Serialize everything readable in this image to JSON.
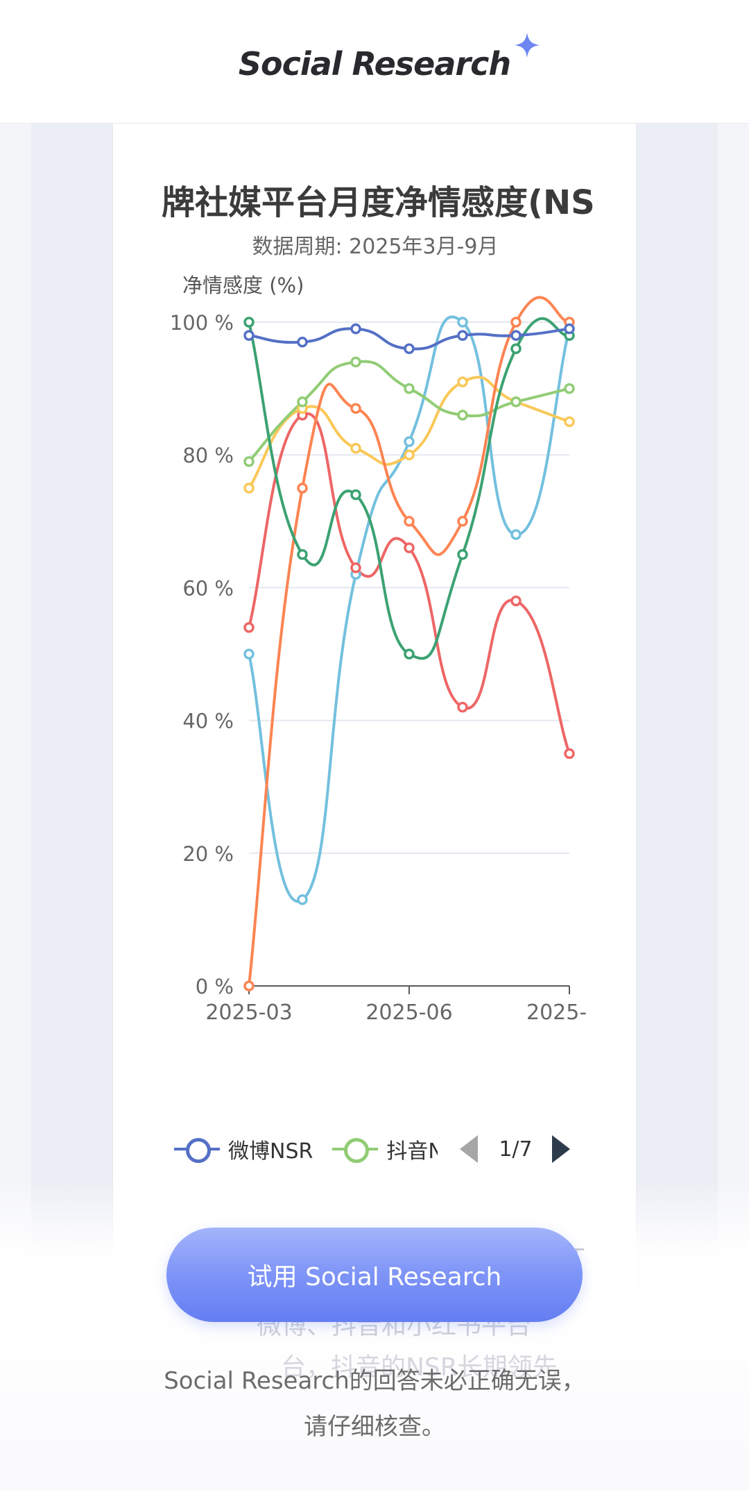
{
  "header": {
    "brand": "Social Research"
  },
  "chart": {
    "title": "牌社媒平台月度净情感度(NS",
    "subtitle": "数据周期: 2025年3月-9月",
    "y_axis_title": "净情感度 (%)",
    "y_ticks": [
      "100 %",
      "80 %",
      "60 %",
      "40 %",
      "20 %",
      "0 %"
    ],
    "x_ticks": [
      "2025-03",
      "2025-06",
      "2025-"
    ]
  },
  "chart_data": {
    "type": "line",
    "title": "牌社媒平台月度净情感度(NS",
    "subtitle": "数据周期: 2025年3月-9月",
    "ylabel": "净情感度 (%)",
    "ylim": [
      0,
      100
    ],
    "x": [
      "2025-03",
      "2025-04",
      "2025-05",
      "2025-06",
      "2025-07",
      "2025-08",
      "2025-09"
    ],
    "series": [
      {
        "name": "微博NSR",
        "color": "#5470c6",
        "values": [
          98,
          97,
          99,
          96,
          98,
          98,
          99
        ]
      },
      {
        "name": "抖音N",
        "color": "#91cc75",
        "values": [
          79,
          88,
          94,
          90,
          86,
          88,
          90
        ]
      },
      {
        "color": "#fac858",
        "values": [
          75,
          87,
          81,
          80,
          91,
          88,
          85
        ]
      },
      {
        "color": "#ee6666",
        "values": [
          54,
          86,
          63,
          66,
          42,
          58,
          35
        ]
      },
      {
        "color": "#73c0de",
        "values": [
          50,
          13,
          62,
          82,
          100,
          68,
          99
        ]
      },
      {
        "color": "#3ba272",
        "values": [
          100,
          65,
          74,
          50,
          65,
          96,
          98
        ]
      },
      {
        "color": "#fc8452",
        "values": [
          0,
          75,
          87,
          70,
          70,
          100,
          100
        ]
      }
    ],
    "grid": true,
    "legend_position": "bottom"
  },
  "legend": {
    "items": [
      {
        "label": "微博NSR",
        "color": "#5470c6"
      },
      {
        "label": "抖音N",
        "color": "#91cc75"
      }
    ],
    "pager": "1/7"
  },
  "ghost": {
    "line1": "微博、抖音和小红书平台",
    "line2": "台，抖音的NSR长期领先",
    "line3": "T"
  },
  "cta": {
    "label": "试用 Social Research"
  },
  "disclaimer": {
    "line1": "Social Research的回答未必正确无误，",
    "line2": "请仔细核查。"
  }
}
